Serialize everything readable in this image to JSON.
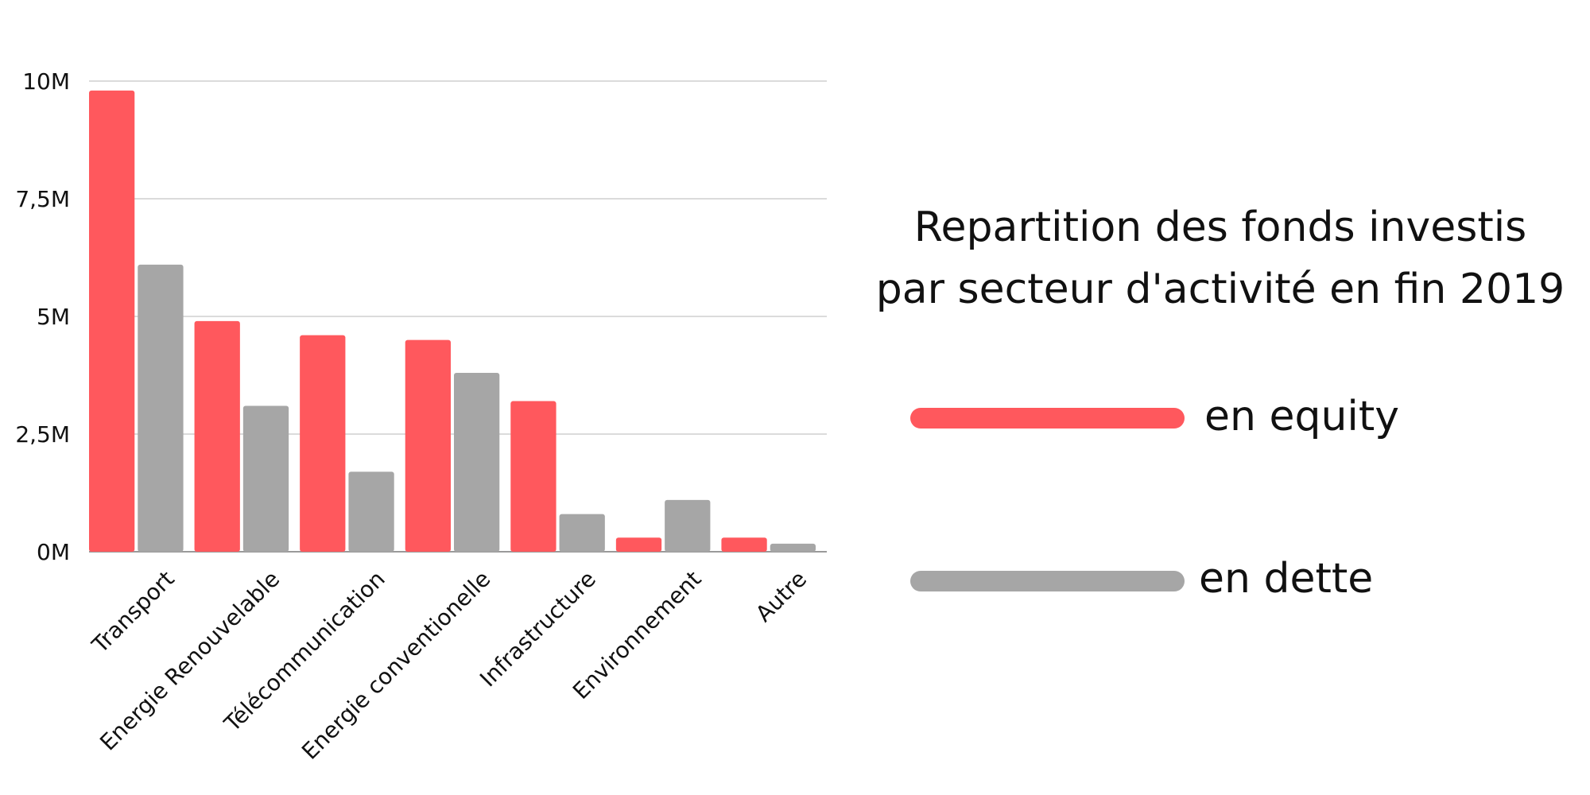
{
  "chart_data": {
    "type": "bar",
    "title": "Repartition des fonds investis par secteur d'activité en fin 2019",
    "title_lines": [
      "Repartition des fonds investis",
      "par secteur d'activité en fin 2019"
    ],
    "categories": [
      "Transport",
      "Energie Renouvelable",
      "Télécommunication",
      "Energie conventionelle",
      "Infrastructure",
      "Environnement",
      "Autre"
    ],
    "series": [
      {
        "name": "en equity",
        "color": "#FF585D",
        "values": [
          9.8,
          4.9,
          4.6,
          4.5,
          3.2,
          0.3,
          0.3
        ]
      },
      {
        "name": "en dette",
        "color": "#A6A6A6",
        "values": [
          6.1,
          3.1,
          1.7,
          3.8,
          0.8,
          1.1,
          0.17
        ]
      }
    ],
    "ylim": [
      0,
      10
    ],
    "yticks": [
      0,
      2.5,
      5,
      7.5,
      10
    ],
    "ytick_labels": [
      "0M",
      "2,5M",
      "5M",
      "7,5M",
      "10M"
    ],
    "xlabel": "",
    "ylabel": "",
    "grid": true,
    "legend_position": "right"
  }
}
